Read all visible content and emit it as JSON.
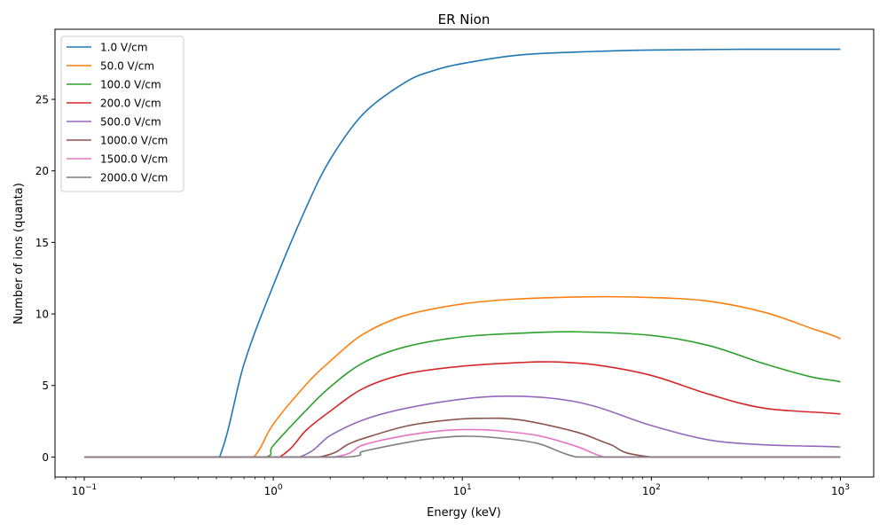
{
  "chart_data": {
    "type": "line",
    "title": "ER Nion",
    "xlabel": "Energy (keV)",
    "ylabel": "Number of ions (quanta)",
    "xscale": "log",
    "xlim": [
      0.07,
      1500
    ],
    "ylim": [
      -1.4,
      29.9
    ],
    "grid": false,
    "legend_position": "top-left",
    "x_tick_labels": [
      "10−1",
      "100",
      "101",
      "102",
      "103"
    ],
    "y_tick_labels": [
      "0",
      "5",
      "10",
      "15",
      "20",
      "25"
    ],
    "series": [
      {
        "name": "1.0 V/cm",
        "color": "#1f77b4",
        "x": [
          0.1,
          0.3,
          0.52,
          0.7,
          1.0,
          1.5,
          2,
          3,
          5,
          7,
          10,
          20,
          50,
          100,
          300,
          1000
        ],
        "y": [
          0,
          0,
          0,
          6.5,
          12.0,
          17.5,
          20.8,
          24.0,
          26.2,
          27.0,
          27.5,
          28.1,
          28.35,
          28.45,
          28.5,
          28.5
        ]
      },
      {
        "name": "50.0 V/cm",
        "color": "#ff7f0e",
        "x": [
          0.1,
          0.5,
          0.79,
          1.0,
          1.5,
          2,
          3,
          5,
          10,
          20,
          50,
          100,
          200,
          400,
          700,
          1000
        ],
        "y": [
          0,
          0,
          0,
          2.3,
          5.1,
          6.7,
          8.6,
          9.9,
          10.7,
          11.05,
          11.2,
          11.15,
          10.9,
          10.1,
          9.0,
          8.25
        ]
      },
      {
        "name": "100.0 V/cm",
        "color": "#2ca02c",
        "x": [
          0.1,
          0.5,
          0.92,
          1.0,
          1.5,
          2,
          3,
          5,
          10,
          20,
          40,
          100,
          200,
          400,
          700,
          1000
        ],
        "y": [
          0,
          0,
          0,
          0.8,
          3.3,
          4.9,
          6.6,
          7.7,
          8.4,
          8.65,
          8.75,
          8.5,
          7.8,
          6.5,
          5.6,
          5.25
        ]
      },
      {
        "name": "200.0 V/cm",
        "color": "#d62728",
        "x": [
          0.1,
          0.5,
          1.08,
          1.5,
          2,
          3,
          5,
          10,
          20,
          30,
          50,
          100,
          200,
          400,
          1000
        ],
        "y": [
          0,
          0,
          0,
          1.9,
          3.2,
          4.8,
          5.8,
          6.35,
          6.6,
          6.65,
          6.45,
          5.7,
          4.4,
          3.4,
          3.0
        ]
      },
      {
        "name": "500.0 V/cm",
        "color": "#9467bd",
        "x": [
          0.1,
          0.5,
          1.38,
          2,
          3,
          5,
          10,
          17,
          30,
          50,
          100,
          200,
          400,
          1000
        ],
        "y": [
          0,
          0,
          0,
          1.5,
          2.6,
          3.4,
          4.05,
          4.25,
          4.1,
          3.55,
          2.2,
          1.2,
          0.85,
          0.7
        ]
      },
      {
        "name": "1000.0 V/cm",
        "color": "#8c564b",
        "x": [
          0.1,
          0.5,
          1.75,
          2.5,
          3,
          5,
          8,
          12,
          20,
          40,
          60,
          100,
          1000
        ],
        "y": [
          0,
          0,
          0,
          0.9,
          1.3,
          2.15,
          2.55,
          2.7,
          2.6,
          1.75,
          0.9,
          0,
          0
        ]
      },
      {
        "name": "1500.0 V/cm",
        "color": "#e377c2",
        "x": [
          0.1,
          0.5,
          2.1,
          3,
          5,
          8,
          11,
          15,
          25,
          40,
          56,
          100,
          1000
        ],
        "y": [
          0,
          0,
          0,
          0.85,
          1.5,
          1.85,
          1.92,
          1.85,
          1.5,
          0.75,
          0,
          0,
          0
        ]
      },
      {
        "name": "2000.0 V/cm",
        "color": "#7f7f7f",
        "x": [
          0.1,
          0.5,
          2.45,
          3,
          5,
          7,
          10,
          15,
          25,
          40,
          100,
          1000
        ],
        "y": [
          0,
          0,
          0,
          0.4,
          1.0,
          1.3,
          1.45,
          1.35,
          0.95,
          0,
          0,
          0
        ]
      }
    ]
  }
}
